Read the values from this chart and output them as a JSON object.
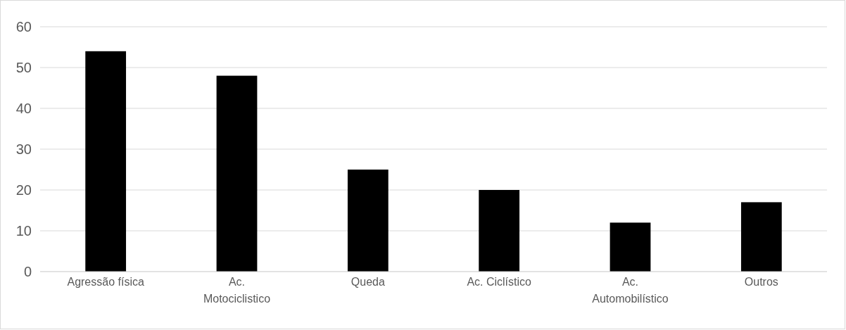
{
  "chart_data": {
    "type": "bar",
    "categories": [
      "Agressão física",
      "Ac. Motociclistico",
      "Queda",
      "Ac. Ciclístico",
      "Ac. Automobilístico",
      "Outros"
    ],
    "values": [
      54,
      48,
      25,
      20,
      12,
      17
    ],
    "color": "#000000",
    "ylim": [
      0,
      60
    ],
    "yticks": [
      0,
      10,
      20,
      30,
      40,
      50,
      60
    ],
    "grid": "y"
  }
}
